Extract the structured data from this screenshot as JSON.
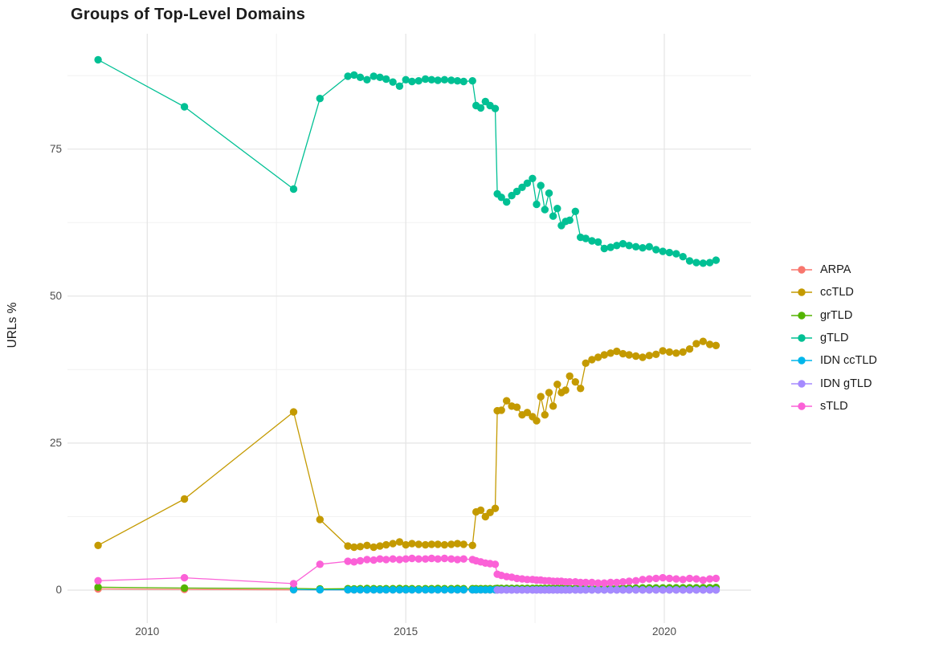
{
  "title_block": {
    "title": "Groups of Top-Level Domains"
  },
  "axes": {
    "y_label": "URLs %",
    "y_tick_labels": [
      "0",
      "25",
      "50",
      "75"
    ],
    "x_tick_labels": [
      "2010",
      "2015",
      "2020"
    ]
  },
  "colors": {
    "background": "#ffffff",
    "grid_major": "#e4e4e4",
    "grid_minor": "#f2f2f2",
    "tick_text": "#4d4d4d",
    "title_text": "#1c1c1c",
    "legend_text": "#1a1a1a"
  },
  "chart_data": {
    "type": "line",
    "title": "Groups of Top-Level Domains",
    "xlabel": "",
    "ylabel": "URLs %",
    "x_range": [
      2008.52,
      2021.68
    ],
    "y_range": [
      -4.8,
      94.7
    ],
    "x_major_ticks": [
      2010,
      2015,
      2020
    ],
    "x_minor_ticks": [
      2012.5,
      2017.5
    ],
    "y_major_ticks": [
      0,
      25,
      50,
      75
    ],
    "y_minor_ticks": [
      12.5,
      37.5,
      62.5,
      87.5
    ],
    "grid": true,
    "legend_position": "right",
    "point_radius": 4.7,
    "line_width": 1.3,
    "x_sparse": [
      2009.05,
      2010.72,
      2012.83,
      2013.34
    ],
    "x_blockA": [
      2013.88,
      2014.0,
      2014.12,
      2014.25,
      2014.38,
      2014.5,
      2014.62,
      2014.75,
      2014.88,
      2015.0,
      2015.12,
      2015.25,
      2015.38,
      2015.5,
      2015.62,
      2015.75,
      2015.88,
      2016.0,
      2016.12,
      2016.29
    ],
    "x_blockB": [
      2016.36,
      2016.45,
      2016.54,
      2016.63,
      2016.73
    ],
    "x_blockC": [
      2016.77,
      2016.85,
      2016.95,
      2017.05,
      2017.15,
      2017.25,
      2017.35,
      2017.45,
      2017.53,
      2017.61,
      2017.69,
      2017.77,
      2017.85,
      2017.93,
      2018.01,
      2018.09,
      2018.17,
      2018.28,
      2018.38,
      2018.48,
      2018.6,
      2018.72,
      2018.84,
      2018.96,
      2019.08,
      2019.2,
      2019.32,
      2019.45,
      2019.58,
      2019.71,
      2019.84,
      2019.97,
      2020.1,
      2020.23,
      2020.36,
      2020.49,
      2020.62,
      2020.75,
      2020.88,
      2021.0
    ],
    "draw_order": [
      "ARPA",
      "grTLD",
      "IDN ccTLD",
      "IDN gTLD",
      "ccTLD",
      "gTLD",
      "sTLD"
    ],
    "series": [
      {
        "name": "ARPA",
        "color": "#F8766D",
        "sparse": [
          0.2,
          0.12,
          0.06,
          0.05
        ],
        "A": [
          0.04,
          0.04,
          0.04,
          0.04,
          0.04,
          0.04,
          0.04,
          0.04,
          0.04,
          0.04,
          0.04,
          0.04,
          0.04,
          0.04,
          0.04,
          0.04,
          0.04,
          0.04,
          0.04,
          0.04
        ],
        "B": [
          0.04,
          0.04,
          0.04,
          0.04,
          0.04
        ],
        "C": [
          0.04,
          0.04,
          0.04,
          0.04,
          0.04,
          0.04,
          0.04,
          0.04,
          0.04,
          0.04,
          0.04,
          0.04,
          0.04,
          0.04,
          0.04,
          0.04,
          0.04,
          0.04,
          0.04,
          0.04,
          0.04,
          0.04,
          0.04,
          0.04,
          0.04,
          0.04,
          0.04,
          0.04,
          0.04,
          0.04,
          0.04,
          0.04,
          0.04,
          0.04,
          0.04,
          0.04,
          0.04,
          0.04,
          0.04,
          0.04
        ]
      },
      {
        "name": "ccTLD",
        "color": "#C49A00",
        "sparse": [
          7.6,
          15.5,
          30.3,
          12.0
        ],
        "A": [
          7.5,
          7.3,
          7.4,
          7.6,
          7.3,
          7.5,
          7.7,
          7.9,
          8.2,
          7.7,
          7.9,
          7.8,
          7.7,
          7.8,
          7.8,
          7.7,
          7.8,
          7.9,
          7.8,
          7.6
        ],
        "B": [
          13.3,
          13.6,
          12.5,
          13.2,
          13.9
        ],
        "C": [
          30.5,
          30.6,
          32.2,
          31.3,
          31.1,
          29.8,
          30.2,
          29.5,
          28.8,
          32.9,
          29.8,
          33.6,
          31.3,
          35.0,
          33.6,
          34.0,
          36.4,
          35.4,
          34.3,
          38.6,
          39.2,
          39.6,
          40.0,
          40.3,
          40.6,
          40.2,
          40.0,
          39.8,
          39.6,
          39.9,
          40.1,
          40.7,
          40.5,
          40.3,
          40.5,
          41.0,
          41.9,
          42.3,
          41.8,
          41.6
        ]
      },
      {
        "name": "grTLD",
        "color": "#53B400",
        "sparse": [
          0.5,
          0.35,
          0.28,
          0.2
        ],
        "A": [
          0.25,
          0.22,
          0.25,
          0.28,
          0.25,
          0.22,
          0.25,
          0.25,
          0.28,
          0.25,
          0.25,
          0.22,
          0.25,
          0.25,
          0.28,
          0.25,
          0.25,
          0.28,
          0.25,
          0.25
        ],
        "B": [
          0.25,
          0.25,
          0.25,
          0.25,
          0.25
        ],
        "C": [
          0.3,
          0.3,
          0.3,
          0.3,
          0.3,
          0.3,
          0.3,
          0.3,
          0.3,
          0.3,
          0.3,
          0.3,
          0.3,
          0.3,
          0.32,
          0.32,
          0.32,
          0.32,
          0.32,
          0.32,
          0.32,
          0.32,
          0.35,
          0.35,
          0.35,
          0.35,
          0.35,
          0.35,
          0.38,
          0.38,
          0.38,
          0.38,
          0.4,
          0.4,
          0.4,
          0.4,
          0.4,
          0.42,
          0.42,
          0.45
        ]
      },
      {
        "name": "gTLD",
        "color": "#00C094",
        "sparse": [
          90.2,
          82.2,
          68.2,
          83.6
        ],
        "A": [
          87.4,
          87.6,
          87.2,
          86.8,
          87.4,
          87.2,
          86.9,
          86.4,
          85.7,
          86.8,
          86.5,
          86.6,
          86.9,
          86.8,
          86.7,
          86.8,
          86.7,
          86.6,
          86.5,
          86.6
        ],
        "B": [
          82.4,
          82.0,
          83.1,
          82.4,
          81.9
        ],
        "C": [
          67.4,
          66.8,
          66.0,
          67.1,
          67.8,
          68.5,
          69.2,
          70.0,
          65.6,
          68.8,
          64.7,
          67.5,
          63.6,
          64.9,
          62.0,
          62.7,
          62.9,
          64.4,
          60.0,
          59.8,
          59.4,
          59.2,
          58.1,
          58.3,
          58.6,
          58.9,
          58.6,
          58.4,
          58.2,
          58.4,
          57.9,
          57.6,
          57.4,
          57.2,
          56.7,
          56.0,
          55.7,
          55.6,
          55.7,
          56.1
        ]
      },
      {
        "name": "IDN ccTLD",
        "color": "#00B6EB",
        "sparse": [
          null,
          null,
          0.08,
          0.06
        ],
        "A": [
          0.06,
          0.06,
          0.06,
          0.06,
          0.06,
          0.06,
          0.06,
          0.06,
          0.06,
          0.06,
          0.06,
          0.06,
          0.06,
          0.06,
          0.06,
          0.06,
          0.06,
          0.06,
          0.06,
          0.06
        ],
        "B": [
          0.06,
          0.06,
          0.06,
          0.06,
          0.06
        ],
        "C": [
          0.06,
          0.06,
          0.06,
          0.06,
          0.06,
          0.06,
          0.06,
          0.06,
          0.06,
          0.06,
          0.06,
          0.06,
          0.06,
          0.06,
          0.06,
          0.06,
          0.06,
          0.06,
          0.06,
          0.06,
          0.06,
          0.06,
          0.06,
          0.06,
          0.06,
          0.06,
          0.06,
          0.06,
          0.06,
          0.06,
          0.06,
          0.06,
          0.06,
          0.06,
          0.06,
          0.06,
          0.06,
          0.06,
          0.06,
          0.06
        ]
      },
      {
        "name": "IDN gTLD",
        "color": "#A58AFF",
        "sparse": [
          null,
          null,
          null,
          null
        ],
        "A": [
          null,
          null,
          null,
          null,
          null,
          null,
          null,
          null,
          null,
          null,
          null,
          null,
          null,
          null,
          null,
          null,
          null,
          null,
          null,
          null
        ],
        "B": [
          null,
          null,
          null,
          null,
          null
        ],
        "C": [
          0.03,
          0.03,
          0.03,
          0.03,
          0.03,
          0.03,
          0.03,
          0.03,
          0.03,
          0.03,
          0.03,
          0.03,
          0.03,
          0.03,
          0.03,
          0.03,
          0.03,
          0.03,
          0.03,
          0.03,
          0.03,
          0.03,
          0.03,
          0.03,
          0.03,
          0.03,
          0.03,
          0.03,
          0.03,
          0.03,
          0.03,
          0.03,
          0.03,
          0.03,
          0.03,
          0.03,
          0.03,
          0.03,
          0.03,
          0.03
        ]
      },
      {
        "name": "sTLD",
        "color": "#FB61D7",
        "sparse": [
          1.6,
          2.1,
          1.1,
          4.4
        ],
        "A": [
          4.9,
          4.8,
          5.0,
          5.2,
          5.1,
          5.3,
          5.2,
          5.3,
          5.2,
          5.3,
          5.4,
          5.3,
          5.3,
          5.4,
          5.3,
          5.4,
          5.3,
          5.2,
          5.3,
          5.2
        ],
        "B": [
          5.0,
          4.8,
          4.6,
          4.5,
          4.4
        ],
        "C": [
          2.7,
          2.5,
          2.3,
          2.2,
          2.0,
          1.9,
          1.8,
          1.8,
          1.7,
          1.7,
          1.6,
          1.6,
          1.5,
          1.5,
          1.5,
          1.4,
          1.4,
          1.4,
          1.3,
          1.3,
          1.3,
          1.2,
          1.2,
          1.3,
          1.3,
          1.4,
          1.5,
          1.6,
          1.8,
          1.9,
          2.0,
          2.1,
          2.0,
          1.9,
          1.8,
          2.0,
          1.9,
          1.7,
          1.9,
          2.0
        ]
      }
    ],
    "legend_items": [
      "ARPA",
      "ccTLD",
      "grTLD",
      "gTLD",
      "IDN ccTLD",
      "IDN gTLD",
      "sTLD"
    ]
  }
}
